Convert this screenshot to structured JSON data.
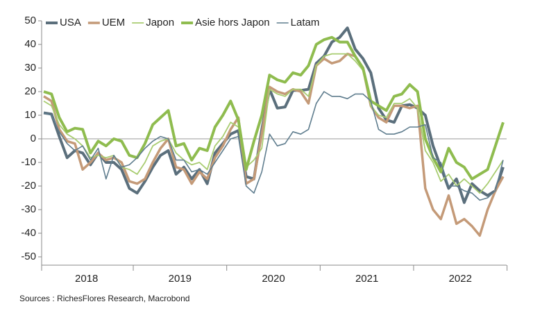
{
  "chart_data": {
    "type": "line",
    "categories": [
      null,
      null,
      null,
      null,
      null,
      null,
      "2018",
      null,
      null,
      null,
      null,
      null,
      null,
      null,
      null,
      null,
      null,
      null,
      "2019",
      null,
      null,
      null,
      null,
      null,
      null,
      null,
      null,
      null,
      null,
      null,
      "2020",
      null,
      null,
      null,
      null,
      null,
      null,
      null,
      null,
      null,
      null,
      null,
      "2021",
      null,
      null,
      null,
      null,
      null,
      null,
      null,
      null,
      null,
      null,
      null,
      "2022",
      null,
      null,
      null,
      null,
      null
    ],
    "series": [
      {
        "name": "USA",
        "color": "#5b6f7c",
        "width": 4,
        "values": [
          11,
          10.5,
          1,
          -8,
          -5,
          -6,
          -11,
          -6,
          -10,
          -10,
          -13,
          -21,
          -23,
          -18,
          -12,
          -7,
          -5,
          -15,
          -12,
          -17,
          -13,
          -19,
          -6,
          -2,
          2,
          3.5,
          -16,
          -17,
          4,
          21,
          13,
          13.5,
          20.5,
          20.5,
          21,
          32,
          35,
          41,
          43,
          47,
          38,
          34,
          28,
          13,
          8,
          7,
          14,
          14.5,
          13,
          10,
          -3,
          -12,
          -21,
          -17,
          -27,
          -19,
          -22,
          -24,
          -22,
          -12
        ]
      },
      {
        "name": "UEM",
        "color": "#c49a78",
        "width": 3.5,
        "values": [
          18,
          16,
          4,
          -1,
          -2,
          -13,
          -10,
          -6,
          -9,
          -8,
          -10,
          -18,
          -19,
          -17,
          -10,
          -4,
          0,
          -12,
          -13,
          -19,
          -14,
          -17,
          -8,
          -3,
          4,
          9,
          -19,
          -17,
          2,
          22,
          20,
          19,
          21,
          20,
          15,
          31,
          34,
          32,
          33,
          36,
          35,
          30,
          14,
          9,
          7,
          14,
          14,
          13,
          14,
          -21,
          -30,
          -34,
          -24,
          -36,
          -34,
          -37,
          -41,
          -30,
          -22,
          -16
        ]
      },
      {
        "name": "Japon",
        "color": "#a8cc70",
        "width": 1.8,
        "values": [
          16,
          14,
          6,
          2,
          0,
          -3,
          -8,
          -7,
          -8,
          -7,
          -12,
          -13,
          -15,
          -10,
          -3,
          -1,
          0,
          -6,
          -9,
          -11,
          -10,
          -13,
          -3,
          1,
          7,
          5,
          -12,
          -9,
          -4,
          21,
          19,
          18,
          21,
          21,
          18,
          31,
          35,
          36,
          36,
          36,
          33,
          29,
          14,
          10,
          9,
          15,
          15,
          17,
          13,
          -5,
          -10,
          -18,
          -15,
          -20,
          -17,
          -20,
          -23,
          -19,
          -14,
          -9
        ]
      },
      {
        "name": "Asie hors Japon",
        "color": "#8fbc4f",
        "width": 4,
        "values": [
          20,
          19,
          9,
          3,
          4.5,
          4,
          -6,
          -1,
          -3,
          0,
          -1,
          -7,
          -8,
          -2,
          6,
          9,
          12,
          -3,
          -2,
          -9,
          -4,
          -5,
          5,
          10,
          16,
          8,
          -13,
          -1,
          10,
          27,
          25,
          24,
          28,
          27,
          31,
          40,
          42,
          43,
          41,
          41,
          35,
          30,
          16,
          14,
          12,
          18,
          19,
          23,
          20,
          0,
          -8,
          -14,
          -4,
          -10,
          -12,
          -17,
          -15,
          -13,
          -3,
          7
        ]
      },
      {
        "name": "Latam",
        "color": "#5f7d8e",
        "width": 1.6,
        "values": [
          11,
          10,
          3,
          -2,
          -5,
          -3,
          -9,
          -4,
          -17,
          -7,
          -12,
          -11,
          -8,
          -4,
          -1,
          1,
          0,
          -9,
          -9,
          -14,
          -13,
          -15,
          -10,
          -5,
          0,
          1,
          -20,
          -23,
          -14,
          2,
          -3,
          -2,
          3,
          2,
          4,
          15,
          20,
          18,
          18,
          17,
          19,
          19,
          16,
          4,
          2,
          2,
          3,
          5,
          5,
          6,
          -8,
          -10,
          -20,
          -20,
          -22,
          -23,
          -26,
          -25,
          -22,
          -9
        ]
      }
    ],
    "ylim": [
      -50,
      50
    ],
    "yticks": [
      -50,
      -40,
      -30,
      -20,
      -10,
      0,
      10,
      20,
      30,
      40,
      50
    ],
    "zero_line": true,
    "legend": "top",
    "source": "Sources : RichesFlores Research, Macrobond"
  }
}
